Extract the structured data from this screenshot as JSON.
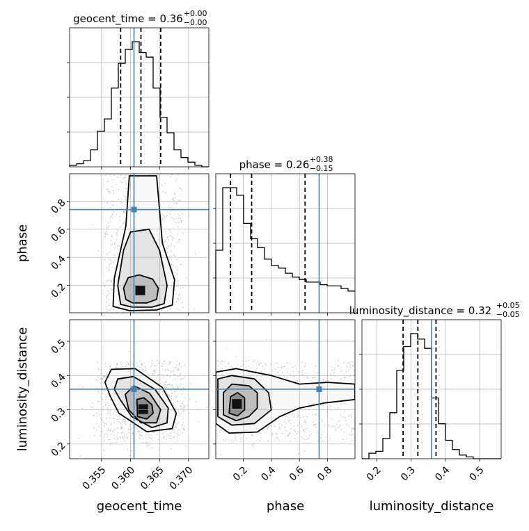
{
  "chart_data": {
    "type": "corner",
    "parameters": [
      {
        "name": "geocent_time",
        "range": [
          0.3495,
          0.3735
        ],
        "ticks": [
          0.355,
          0.36,
          0.365,
          0.37
        ],
        "tick_labels": [
          "0.355",
          "0.360",
          "0.365",
          "0.370"
        ],
        "truth": 0.3606,
        "quantiles": [
          0.3583,
          0.3618,
          0.3652
        ],
        "title": "geocent_time = 0.36",
        "title_sup": "+0.00",
        "title_sub": "−0.00"
      },
      {
        "name": "phase",
        "range": [
          0.005,
          0.995
        ],
        "ticks": [
          0.2,
          0.4,
          0.6,
          0.8
        ],
        "tick_labels": [
          "0.2",
          "0.4",
          "0.6",
          "0.8"
        ],
        "truth": 0.74,
        "quantiles": [
          0.11,
          0.26,
          0.64
        ],
        "title": "phase = 0.26",
        "title_sup": "+0.38",
        "title_sub": "−0.15"
      },
      {
        "name": "luminosity_distance",
        "range": [
          0.157,
          0.563
        ],
        "ticks": [
          0.2,
          0.3,
          0.4,
          0.5
        ],
        "tick_labels": [
          "0.2",
          "0.3",
          "0.4",
          "0.5"
        ],
        "truth": 0.36,
        "quantiles": [
          0.277,
          0.32,
          0.373
        ],
        "title": "luminosity_distance = 0.32",
        "title_sup": "+0.05",
        "title_sub": "−0.05"
      }
    ],
    "histograms": [
      {
        "param": "geocent_time",
        "bins": [
          0.3495,
          0.3507,
          0.3519,
          0.3531,
          0.3543,
          0.3555,
          0.3567,
          0.3579,
          0.3591,
          0.3603,
          0.3615,
          0.3627,
          0.3639,
          0.3651,
          0.3663,
          0.3675,
          0.3687,
          0.3699,
          0.3711,
          0.3723,
          0.3735
        ],
        "counts": [
          1,
          2,
          4,
          11,
          23,
          31,
          51,
          67,
          76,
          81,
          74,
          71,
          51,
          32,
          22,
          11,
          6,
          3,
          1,
          0
        ]
      },
      {
        "param": "phase",
        "bins": [
          0.005,
          0.0545,
          0.104,
          0.1535,
          0.203,
          0.2525,
          0.302,
          0.3515,
          0.401,
          0.4505,
          0.5,
          0.5495,
          0.599,
          0.6485,
          0.698,
          0.7475,
          0.797,
          0.8465,
          0.896,
          0.9455,
          0.995
        ],
        "counts": [
          49,
          98,
          98,
          92,
          70,
          58,
          51,
          42,
          37,
          35,
          31,
          28,
          26,
          24,
          24,
          22,
          21,
          21,
          19,
          17
        ]
      },
      {
        "param": "luminosity_distance",
        "bins": [
          0.157,
          0.1773,
          0.1976,
          0.2179,
          0.2382,
          0.2585,
          0.2788,
          0.2991,
          0.3194,
          0.3397,
          0.36,
          0.3803,
          0.4006,
          0.4209,
          0.4412,
          0.4615,
          0.4818,
          0.5021,
          0.5224,
          0.5427,
          0.563
        ],
        "counts": [
          0,
          3,
          4,
          11,
          25,
          48,
          61,
          68,
          65,
          60,
          33,
          19,
          10,
          5,
          2,
          1,
          0,
          0,
          0,
          0
        ]
      }
    ],
    "contour_panels": [
      {
        "x": "geocent_time",
        "y": "phase",
        "density_center": [
          0.3618,
          0.16
        ],
        "levels": [
          [
            [
              0.3592,
              0.1
            ],
            [
              0.3604,
              0.075
            ],
            [
              0.3628,
              0.075
            ],
            [
              0.3645,
              0.1
            ],
            [
              0.3648,
              0.18
            ],
            [
              0.3638,
              0.245
            ],
            [
              0.3615,
              0.275
            ],
            [
              0.3596,
              0.255
            ],
            [
              0.3588,
              0.18
            ]
          ],
          [
            [
              0.3583,
              0.065
            ],
            [
              0.3603,
              0.045
            ],
            [
              0.3637,
              0.045
            ],
            [
              0.3658,
              0.07
            ],
            [
              0.3663,
              0.2
            ],
            [
              0.365,
              0.45
            ],
            [
              0.3632,
              0.6
            ],
            [
              0.36,
              0.58
            ],
            [
              0.3588,
              0.45
            ],
            [
              0.3578,
              0.2
            ]
          ],
          [
            [
              0.357,
              0.05
            ],
            [
              0.3598,
              0.02
            ],
            [
              0.3645,
              0.025
            ],
            [
              0.3672,
              0.06
            ],
            [
              0.3676,
              0.24
            ],
            [
              0.3655,
              0.5
            ],
            [
              0.3645,
              0.98
            ],
            [
              0.3598,
              0.98
            ],
            [
              0.3592,
              0.62
            ],
            [
              0.3572,
              0.25
            ]
          ]
        ]
      },
      {
        "x": "geocent_time",
        "y": "luminosity_distance",
        "density_center": [
          0.3623,
          0.3
        ],
        "levels": [
          [
            [
              0.3612,
              0.28
            ],
            [
              0.3628,
              0.273
            ],
            [
              0.3639,
              0.29
            ],
            [
              0.3637,
              0.315
            ],
            [
              0.3623,
              0.335
            ],
            [
              0.3611,
              0.33
            ]
          ],
          [
            [
              0.3597,
              0.3
            ],
            [
              0.3618,
              0.262
            ],
            [
              0.3645,
              0.262
            ],
            [
              0.3652,
              0.3
            ],
            [
              0.3633,
              0.348
            ],
            [
              0.3606,
              0.37
            ],
            [
              0.3591,
              0.345
            ]
          ],
          [
            [
              0.3582,
              0.33
            ],
            [
              0.3602,
              0.28
            ],
            [
              0.3637,
              0.248
            ],
            [
              0.3663,
              0.262
            ],
            [
              0.3665,
              0.305
            ],
            [
              0.3642,
              0.36
            ],
            [
              0.3605,
              0.397
            ],
            [
              0.3578,
              0.39
            ],
            [
              0.3572,
              0.36
            ]
          ],
          [
            [
              0.3565,
              0.34
            ],
            [
              0.358,
              0.29
            ],
            [
              0.3628,
              0.236
            ],
            [
              0.3672,
              0.245
            ],
            [
              0.3679,
              0.29
            ],
            [
              0.3655,
              0.365
            ],
            [
              0.3608,
              0.42
            ],
            [
              0.3567,
              0.418
            ],
            [
              0.3556,
              0.38
            ]
          ]
        ]
      },
      {
        "x": "phase",
        "y": "luminosity_distance",
        "density_center": [
          0.16,
          0.315
        ],
        "levels": [
          [
            [
              0.1,
              0.29
            ],
            [
              0.16,
              0.282
            ],
            [
              0.21,
              0.3
            ],
            [
              0.21,
              0.335
            ],
            [
              0.16,
              0.35
            ],
            [
              0.11,
              0.338
            ]
          ],
          [
            [
              0.06,
              0.285
            ],
            [
              0.15,
              0.268
            ],
            [
              0.24,
              0.28
            ],
            [
              0.3,
              0.305
            ],
            [
              0.3,
              0.35
            ],
            [
              0.24,
              0.37
            ],
            [
              0.12,
              0.375
            ],
            [
              0.06,
              0.35
            ]
          ],
          [
            [
              0.02,
              0.28
            ],
            [
              0.12,
              0.255
            ],
            [
              0.28,
              0.26
            ],
            [
              0.34,
              0.28
            ],
            [
              0.4,
              0.3
            ],
            [
              0.38,
              0.35
            ],
            [
              0.28,
              0.39
            ],
            [
              0.12,
              0.4
            ],
            [
              0.02,
              0.39
            ]
          ],
          [
            [
              0.005,
              0.26
            ],
            [
              0.1,
              0.232
            ],
            [
              0.3,
              0.235
            ],
            [
              0.46,
              0.28
            ],
            [
              0.6,
              0.305
            ],
            [
              0.78,
              0.32
            ],
            [
              0.995,
              0.33
            ],
            [
              0.995,
              0.375
            ],
            [
              0.8,
              0.38
            ],
            [
              0.6,
              0.375
            ],
            [
              0.4,
              0.4
            ],
            [
              0.15,
              0.42
            ],
            [
              0.005,
              0.41
            ]
          ]
        ]
      }
    ],
    "colors": {
      "truth": "#4682b4",
      "contour": "#000000",
      "grid": "#b0b0b0",
      "scatter": "#999999"
    },
    "grid": true
  }
}
